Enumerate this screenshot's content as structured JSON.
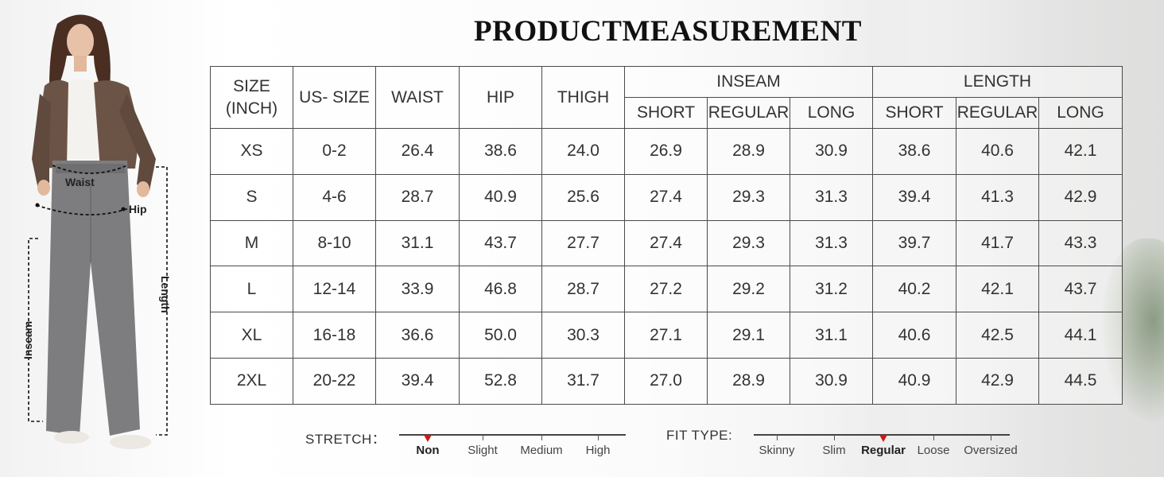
{
  "title": "PRODUCTMEASUREMENT",
  "figure": {
    "waist_label": "Waist",
    "hip_label": "Hip",
    "inseam_label": "Inseam",
    "length_label": "Length"
  },
  "table": {
    "headers": {
      "size": "SIZE (INCH)",
      "us_size": "US- SIZE",
      "waist": "WAIST",
      "hip": "HIP",
      "thigh": "THIGH",
      "inseam": "INSEAM",
      "length": "LENGTH",
      "short": "SHORT",
      "regular": "REGULAR",
      "long": "LONG"
    },
    "rows": [
      [
        "XS",
        "0-2",
        "26.4",
        "38.6",
        "24.0",
        "26.9",
        "28.9",
        "30.9",
        "38.6",
        "40.6",
        "42.1"
      ],
      [
        "S",
        "4-6",
        "28.7",
        "40.9",
        "25.6",
        "27.4",
        "29.3",
        "31.3",
        "39.4",
        "41.3",
        "42.9"
      ],
      [
        "M",
        "8-10",
        "31.1",
        "43.7",
        "27.7",
        "27.4",
        "29.3",
        "31.3",
        "39.7",
        "41.7",
        "43.3"
      ],
      [
        "L",
        "12-14",
        "33.9",
        "46.8",
        "28.7",
        "27.2",
        "29.2",
        "31.2",
        "40.2",
        "42.1",
        "43.7"
      ],
      [
        "XL",
        "16-18",
        "36.6",
        "50.0",
        "30.3",
        "27.1",
        "29.1",
        "31.1",
        "40.6",
        "42.5",
        "44.1"
      ],
      [
        "2XL",
        "20-22",
        "39.4",
        "52.8",
        "31.7",
        "27.0",
        "28.9",
        "30.9",
        "40.9",
        "42.9",
        "44.5"
      ]
    ]
  },
  "stretch": {
    "label": "STRETCH：",
    "options": [
      "Non",
      "Slight",
      "Medium",
      "High"
    ],
    "selected": "Non"
  },
  "fit_type": {
    "label": "FIT TYPE:",
    "options": [
      "Skinny",
      "Slim",
      "Regular",
      "Loose",
      "Oversized"
    ],
    "selected": "Regular"
  },
  "colors": {
    "marker": "#d01818",
    "pants": "#7d7d7f",
    "jacket": "#6b5446"
  }
}
